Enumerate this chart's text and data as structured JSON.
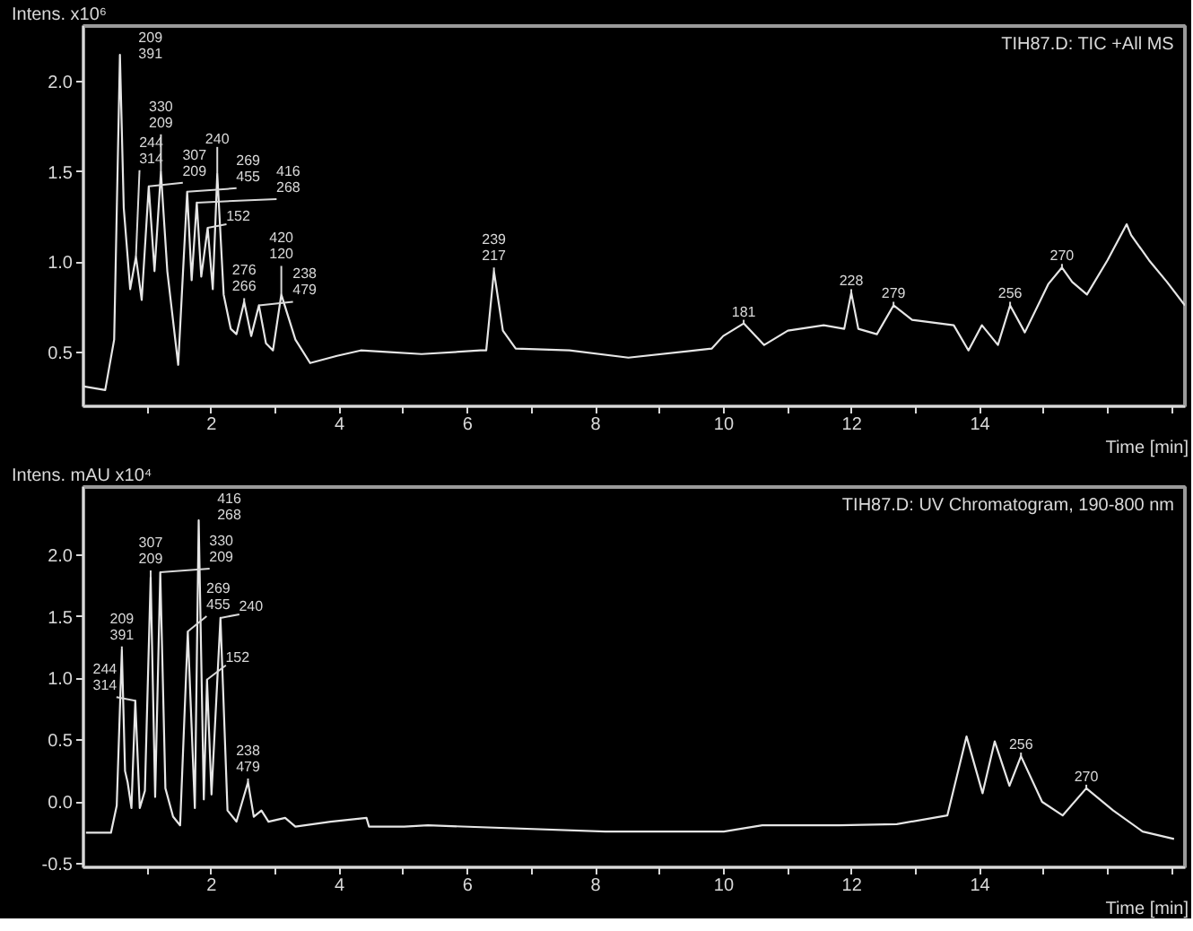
{
  "chart_data": [
    {
      "type": "line",
      "title": "TIH87.D: TIC +All MS",
      "ylabel": "Intens.\nx10⁶",
      "xlabel": "Time [min]",
      "xlim": [
        0,
        17.2
      ],
      "ylim": [
        0.2,
        2.31
      ],
      "xticks": [
        {
          "value": 1,
          "label": null
        },
        2,
        {
          "value": 3,
          "label": null
        },
        4,
        {
          "value": 5,
          "label": null
        },
        6,
        {
          "value": 7,
          "label": null
        },
        8,
        {
          "value": 9,
          "label": null
        },
        10,
        {
          "value": 11,
          "label": null
        },
        12,
        {
          "value": 13,
          "label": null
        },
        14,
        {
          "value": 15,
          "label": null
        },
        {
          "value": 16,
          "label": null
        },
        {
          "value": 17,
          "label": null
        }
      ],
      "yticks": [
        0.5,
        {
          "value": 1,
          "label": "1.0"
        },
        1.5,
        {
          "value": 2,
          "label": "2.0"
        }
      ],
      "series": [
        {
          "color": "#e6e6e6",
          "x": [
            0.01,
            0.34,
            0.48,
            0.57,
            0.63,
            0.73,
            0.82,
            0.91,
            1.02,
            1.11,
            1.21,
            1.31,
            1.48,
            1.62,
            1.69,
            1.77,
            1.84,
            1.94,
            2.02,
            2.09,
            2.19,
            2.3,
            2.39,
            2.51,
            2.62,
            2.74,
            2.85,
            2.96,
            3.09,
            3.31,
            3.54,
            3.96,
            4.33,
            4.79,
            5.28,
            6.2,
            6.29,
            6.41,
            6.55,
            6.75,
            7.59,
            8.51,
            9.81,
            9.99,
            10.31,
            10.63,
            11.0,
            11.56,
            11.88,
            11.99,
            12.1,
            12.39,
            12.65,
            12.94,
            13.59,
            13.82,
            14.03,
            14.28,
            14.47,
            14.7,
            15.07,
            15.28,
            15.44,
            15.67,
            15.99,
            16.29,
            16.36,
            16.64,
            16.92,
            17.2
          ],
          "values": [
            0.31,
            0.29,
            0.57,
            2.15,
            1.3,
            0.85,
            1.03,
            0.79,
            1.42,
            0.95,
            1.5,
            0.95,
            0.43,
            1.39,
            0.9,
            1.33,
            0.92,
            1.19,
            0.85,
            1.49,
            0.82,
            0.63,
            0.6,
            0.78,
            0.59,
            0.76,
            0.55,
            0.51,
            0.82,
            0.57,
            0.44,
            0.48,
            0.51,
            0.5,
            0.49,
            0.51,
            0.51,
            0.95,
            0.62,
            0.52,
            0.51,
            0.47,
            0.52,
            0.59,
            0.66,
            0.54,
            0.62,
            0.65,
            0.63,
            0.83,
            0.63,
            0.6,
            0.76,
            0.68,
            0.65,
            0.51,
            0.65,
            0.54,
            0.76,
            0.61,
            0.88,
            0.97,
            0.89,
            0.82,
            1.01,
            1.21,
            1.15,
            1.01,
            0.89,
            0.76
          ]
        }
      ],
      "annotations": [
        {
          "text": "209\n391",
          "x": 0.57,
          "y": 2.15
        },
        {
          "text": "244\n314",
          "x": 0.82,
          "y": 1.03
        },
        {
          "text": "307\n209",
          "x": 1.02,
          "y": 1.42
        },
        {
          "text": "330\n209",
          "x": 1.21,
          "y": 1.5
        },
        {
          "text": "269\n455",
          "x": 1.62,
          "y": 1.39
        },
        {
          "text": "416\n268",
          "x": 1.77,
          "y": 1.33
        },
        {
          "text": "152",
          "x": 1.94,
          "y": 1.19
        },
        {
          "text": "240",
          "x": 2.09,
          "y": 1.49
        },
        {
          "text": "276\n266",
          "x": 2.51,
          "y": 0.78
        },
        {
          "text": "238\n479",
          "x": 2.74,
          "y": 0.76
        },
        {
          "text": "420\n120",
          "x": 3.09,
          "y": 0.82
        },
        {
          "text": "239\n217",
          "x": 6.41,
          "y": 0.95
        },
        {
          "text": "181",
          "x": 10.31,
          "y": 0.66
        },
        {
          "text": "228",
          "x": 11.99,
          "y": 0.83
        },
        {
          "text": "279",
          "x": 12.65,
          "y": 0.76
        },
        {
          "text": "256",
          "x": 14.47,
          "y": 0.76
        },
        {
          "text": "270",
          "x": 15.28,
          "y": 0.97
        }
      ]
    },
    {
      "type": "line",
      "title": "TIH87.D: UV Chromatogram, 190-800 nm",
      "ylabel": "Intens.\nmAU\nx10⁴",
      "xlabel": "Time [min]",
      "xlim": [
        0,
        17.2
      ],
      "ylim": [
        -0.53,
        2.55
      ],
      "xticks": [
        {
          "value": 1,
          "label": null
        },
        2,
        {
          "value": 3,
          "label": null
        },
        4,
        {
          "value": 5,
          "label": null
        },
        6,
        {
          "value": 7,
          "label": null
        },
        8,
        {
          "value": 9,
          "label": null
        },
        10,
        {
          "value": 11,
          "label": null
        },
        12,
        {
          "value": 13,
          "label": null
        },
        14,
        {
          "value": 15,
          "label": null
        },
        {
          "value": 16,
          "label": null
        },
        {
          "value": 17,
          "label": null
        }
      ],
      "yticks": [
        -0.5,
        {
          "value": 0,
          "label": "0.0"
        },
        0.5,
        {
          "value": 1,
          "label": "1.0"
        },
        1.5,
        {
          "value": 2,
          "label": "2.0"
        }
      ],
      "series": [
        {
          "color": "#e6e6e6",
          "x": [
            0.04,
            0.43,
            0.52,
            0.6,
            0.65,
            0.69,
            0.75,
            0.81,
            0.88,
            0.96,
            1.05,
            1.12,
            1.2,
            1.28,
            1.4,
            1.51,
            1.63,
            1.74,
            1.8,
            1.88,
            1.93,
            2.0,
            2.14,
            2.25,
            2.39,
            2.57,
            2.66,
            2.78,
            2.89,
            3.15,
            3.31,
            3.86,
            4.42,
            4.46,
            5.01,
            5.38,
            8.15,
            10.0,
            10.6,
            11.8,
            12.7,
            13.49,
            13.79,
            14.04,
            14.23,
            14.46,
            14.64,
            14.97,
            15.29,
            15.66,
            16.08,
            16.54,
            17.03
          ],
          "values": [
            -0.25,
            -0.25,
            -0.03,
            1.23,
            0.25,
            0.16,
            -0.05,
            0.82,
            -0.05,
            0.09,
            1.82,
            0.04,
            1.86,
            0.11,
            -0.12,
            -0.19,
            1.38,
            -0.05,
            2.28,
            0.02,
            0.99,
            0.06,
            1.49,
            -0.07,
            -0.16,
            0.16,
            -0.12,
            -0.07,
            -0.16,
            -0.13,
            -0.2,
            -0.16,
            -0.13,
            -0.2,
            -0.2,
            -0.19,
            -0.24,
            -0.24,
            -0.19,
            -0.19,
            -0.18,
            -0.11,
            0.53,
            0.07,
            0.49,
            0.13,
            0.37,
            0.0,
            -0.11,
            0.11,
            -0.07,
            -0.24,
            -0.3
          ]
        }
      ],
      "annotations": [
        {
          "text": "209\n391",
          "x": 0.6,
          "y": 1.23
        },
        {
          "text": "244\n314",
          "x": 0.81,
          "y": 0.82
        },
        {
          "text": "307\n209",
          "x": 1.05,
          "y": 1.82
        },
        {
          "text": "330\n209",
          "x": 1.2,
          "y": 1.86
        },
        {
          "text": "269\n455",
          "x": 1.63,
          "y": 1.38
        },
        {
          "text": "416\n268",
          "x": 1.8,
          "y": 2.28
        },
        {
          "text": "152",
          "x": 1.93,
          "y": 0.99
        },
        {
          "text": "240",
          "x": 2.14,
          "y": 1.49
        },
        {
          "text": "238\n479",
          "x": 2.57,
          "y": 0.16
        },
        {
          "text": "256",
          "x": 14.64,
          "y": 0.37
        },
        {
          "text": "270",
          "x": 15.66,
          "y": 0.11
        }
      ]
    }
  ]
}
